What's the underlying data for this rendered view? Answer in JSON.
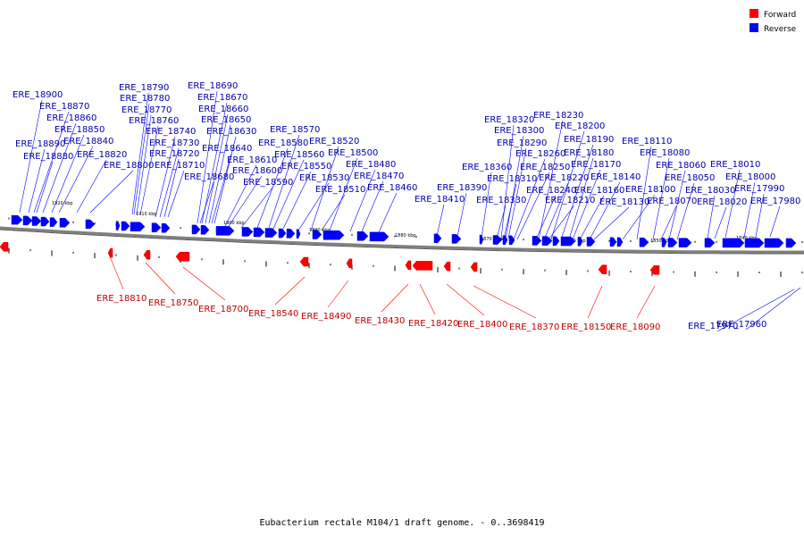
{
  "legend": {
    "items": [
      {
        "label": "Forward",
        "color": "#ff0000"
      },
      {
        "label": "Reverse",
        "color": "#0000ff"
      }
    ]
  },
  "colors": {
    "forward": "#ff0000",
    "forward_label": "#c00000",
    "reverse": "#0000ff",
    "reverse_label": "#0000a8",
    "backbone": "#808080"
  },
  "caption": "Eubacterium rectale M104/1 draft genome. - 0..3698419",
  "ticks": [
    "1920 kbp",
    "1910 kbp",
    "1900 kbp",
    "1890 kbp",
    "1880 kbp",
    "1870 kbp",
    "1860 kbp",
    "1850 kbp",
    "1840 kbp"
  ],
  "reverse_genes": [
    "ERE_18900",
    "ERE_18890",
    "ERE_18880",
    "ERE_18870",
    "ERE_18860",
    "ERE_18850",
    "ERE_18840",
    "ERE_18820",
    "ERE_18800",
    "ERE_18790",
    "ERE_18780",
    "ERE_18770",
    "ERE_18760",
    "ERE_18740",
    "ERE_18730",
    "ERE_18720",
    "ERE_18710",
    "ERE_18690",
    "ERE_18680",
    "ERE_18670",
    "ERE_18660",
    "ERE_18650",
    "ERE_18640",
    "ERE_18630",
    "ERE_18610",
    "ERE_18600",
    "ERE_18590",
    "ERE_18580",
    "ERE_18570",
    "ERE_18560",
    "ERE_18550",
    "ERE_18530",
    "ERE_18520",
    "ERE_18510",
    "ERE_18500",
    "ERE_18480",
    "ERE_18470",
    "ERE_18460",
    "ERE_18410",
    "ERE_18390",
    "ERE_18360",
    "ERE_18330",
    "ERE_18320",
    "ERE_18310",
    "ERE_18300",
    "ERE_18290",
    "ERE_18260",
    "ERE_18250",
    "ERE_18240",
    "ERE_18230",
    "ERE_18220",
    "ERE_18210",
    "ERE_18200",
    "ERE_18190",
    "ERE_18180",
    "ERE_18170",
    "ERE_18160",
    "ERE_18140",
    "ERE_18130",
    "ERE_18110",
    "ERE_18100",
    "ERE_18080",
    "ERE_18070",
    "ERE_18060",
    "ERE_18050",
    "ERE_18030",
    "ERE_18020",
    "ERE_18010",
    "ERE_18000",
    "ERE_17990",
    "ERE_17980",
    "ERE_17970",
    "ERE_17960"
  ],
  "forward_genes": [
    "ERE_18810",
    "ERE_18750",
    "ERE_18700",
    "ERE_18540",
    "ERE_18490",
    "ERE_18430",
    "ERE_18420",
    "ERE_18400",
    "ERE_18370",
    "ERE_18150",
    "ERE_18090"
  ]
}
